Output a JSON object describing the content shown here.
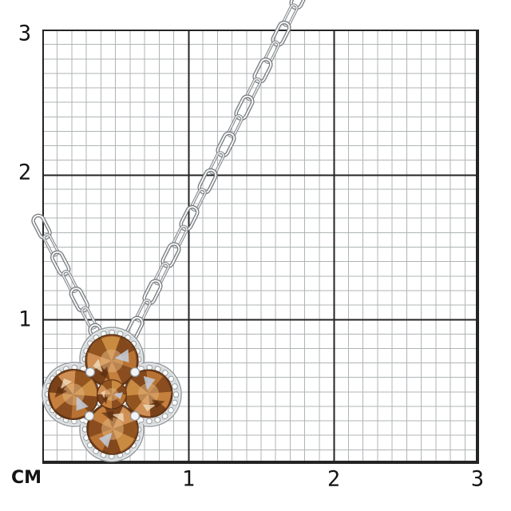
{
  "ruler": {
    "unit_label": "СМ",
    "y_ticks": [
      "3",
      "2",
      "1"
    ],
    "x_ticks": [
      "1",
      "2",
      "3"
    ],
    "grid": {
      "cm_count_x": 3,
      "cm_count_y": 3,
      "minor_per_cm": 10,
      "major_line_color": "#242424",
      "minor_line_color": "#b0b4b6",
      "label_color": "#141414"
    }
  },
  "photo": {
    "subject": "clover-pendant-necklace",
    "colors": {
      "chain_metal": "#eef0f1",
      "chain_outline": "#75797c",
      "halo_bead": "#ffffff",
      "halo_metal": "#9aa0a3",
      "stone_light": "#e2b27c",
      "stone_mid": "#b06a2e",
      "stone_dark": "#5d2f12"
    }
  }
}
